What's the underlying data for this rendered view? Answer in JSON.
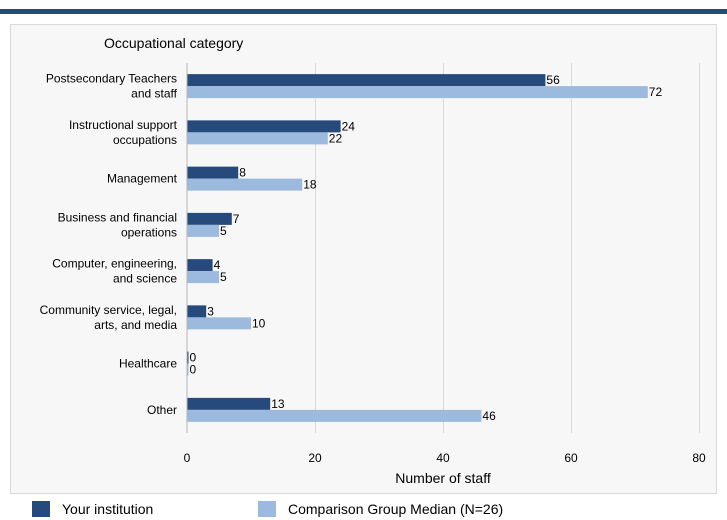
{
  "chart_data": {
    "type": "bar",
    "orientation": "horizontal",
    "title": "Occupational category",
    "xlabel": "Number of staff",
    "ylabel": "",
    "xlim": [
      0,
      80
    ],
    "xticks": [
      0,
      20,
      40,
      60,
      80
    ],
    "grid": true,
    "legend_position": "bottom",
    "categories": [
      [
        "Postsecondary Teachers",
        "and staff"
      ],
      [
        "Instructional support",
        "occupations"
      ],
      [
        "Management"
      ],
      [
        "Business and financial",
        "operations"
      ],
      [
        "Computer, engineering,",
        "and science"
      ],
      [
        "Community service, legal,",
        "arts, and media"
      ],
      [
        "Healthcare"
      ],
      [
        "Other"
      ]
    ],
    "series": [
      {
        "name": "Your institution",
        "color": "#254a7b",
        "values": [
          56,
          24,
          8,
          7,
          4,
          3,
          0,
          13
        ]
      },
      {
        "name": "Comparison Group Median (N=26)",
        "color": "#9cb9de",
        "values": [
          72,
          22,
          18,
          5,
          5,
          10,
          0,
          46
        ]
      }
    ]
  },
  "colors": {
    "top_rule": "#1f4e79",
    "plot_background": "#f7f7f7",
    "gridline": "#d9d9d9"
  }
}
